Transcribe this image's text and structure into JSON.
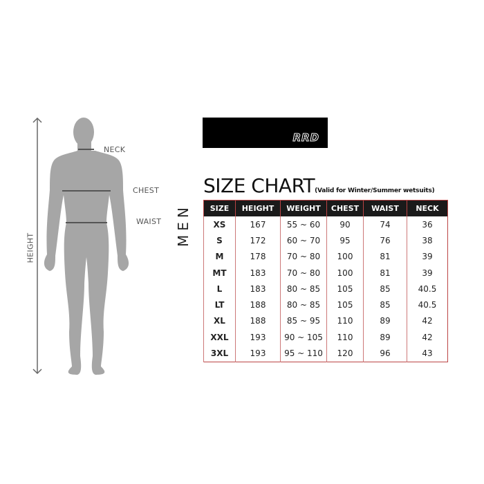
{
  "figure": {
    "labels": {
      "neck": "NECK",
      "chest": "CHEST",
      "waist": "WAIST",
      "height": "HEIGHT"
    }
  },
  "logo": {
    "text": "RRD"
  },
  "title": "SIZE CHART",
  "subtitle": "(Valid for Winter/Summer wetsuits)",
  "group_label": "MEN",
  "table": {
    "headers": [
      "SIZE",
      "HEIGHT",
      "WEIGHT",
      "CHEST",
      "WAIST",
      "NECK"
    ],
    "rows": [
      [
        "XS",
        "167",
        "55 ~ 60",
        "90",
        "74",
        "36"
      ],
      [
        "S",
        "172",
        "60 ~ 70",
        "95",
        "76",
        "38"
      ],
      [
        "M",
        "178",
        "70 ~ 80",
        "100",
        "81",
        "39"
      ],
      [
        "MT",
        "183",
        "70 ~ 80",
        "100",
        "81",
        "39"
      ],
      [
        "L",
        "183",
        "80 ~ 85",
        "105",
        "85",
        "40.5"
      ],
      [
        "LT",
        "188",
        "80 ~ 85",
        "105",
        "85",
        "40.5"
      ],
      [
        "XL",
        "188",
        "85 ~ 95",
        "110",
        "89",
        "42"
      ],
      [
        "XXL",
        "193",
        "90 ~ 105",
        "110",
        "89",
        "42"
      ],
      [
        "3XL",
        "193",
        "95 ~ 110",
        "120",
        "96",
        "43"
      ]
    ]
  },
  "colors": {
    "header_bg": "#1a1a1a",
    "border": "#bb4444",
    "silhouette": "#a6a6a6"
  }
}
